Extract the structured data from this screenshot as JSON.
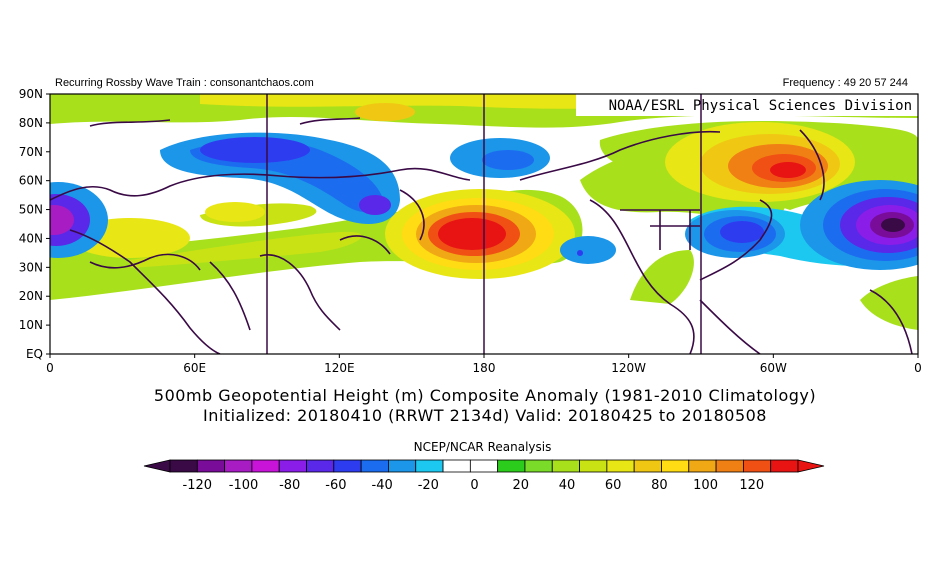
{
  "header": {
    "left": "Recurring Rossby Wave Train : consonantchaos.com",
    "right": "Frequency : 49 20 57 244"
  },
  "map": {
    "credit": "NOAA/ESRL Physical Sciences Division",
    "lat_labels": [
      "90N",
      "80N",
      "70N",
      "60N",
      "50N",
      "40N",
      "30N",
      "20N",
      "10N",
      "EQ"
    ],
    "lon_labels": [
      "0",
      "60E",
      "120E",
      "180",
      "120W",
      "60W",
      "0"
    ],
    "meridian_lines_deg": [
      90,
      180,
      270
    ]
  },
  "caption": {
    "line1": "500mb Geopotential Height (m) Composite Anomaly (1981-2010 Climatology)",
    "line2": "Initialized: 20180410 (RRWT 2134d) Valid: 20180425 to 20180508"
  },
  "colorbar": {
    "title": "NCEP/NCAR Reanalysis",
    "labels": [
      "-120",
      "-100",
      "-80",
      "-60",
      "-40",
      "-20",
      "0",
      "20",
      "40",
      "60",
      "80",
      "100",
      "120"
    ],
    "colors": [
      "#3a0a46",
      "#7a0c9a",
      "#a81cc4",
      "#c814d8",
      "#8a1ee8",
      "#5a28e8",
      "#2e3cf0",
      "#1c6cf0",
      "#1c96e8",
      "#1cc8f0",
      "#ffffff",
      "#ffffff",
      "#2ccc1c",
      "#7adc28",
      "#a8e01c",
      "#c8e214",
      "#e8e614",
      "#f0c814",
      "#ffdc14",
      "#f0a814",
      "#f08014",
      "#f05014",
      "#e81414"
    ],
    "below_color": "#3a0a46",
    "above_color": "#e81414"
  },
  "anomalies": [
    {
      "region": "north-central-pacific",
      "sign": "positive",
      "peak_m": 120
    },
    {
      "region": "eastern-canada-greenland",
      "sign": "positive",
      "peak_m": 100
    },
    {
      "region": "north-atlantic",
      "sign": "negative",
      "peak_m": -120
    },
    {
      "region": "eastern-united-states",
      "sign": "negative",
      "peak_m": -60
    },
    {
      "region": "northern-siberia",
      "sign": "negative",
      "peak_m": -60
    },
    {
      "region": "europe",
      "sign": "negative",
      "peak_m": -80
    }
  ]
}
